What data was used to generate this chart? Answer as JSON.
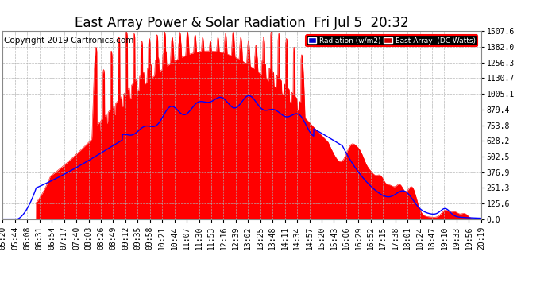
{
  "title": "East Array Power & Solar Radiation  Fri Jul 5  20:32",
  "copyright": "Copyright 2019 Cartronics.com",
  "legend_radiation": "Radiation (w/m2)",
  "legend_east": "East Array  (DC Watts)",
  "legend_radiation_color": "#0000cc",
  "legend_east_color": "#cc0000",
  "legend_bg": "#000000",
  "bg_color": "#ffffff",
  "plot_bg": "#ffffff",
  "grid_color": "#b0b0b0",
  "fill_color": "#ff0000",
  "line_color": "#0000ff",
  "yticks": [
    0.0,
    125.6,
    251.3,
    376.9,
    502.5,
    628.2,
    753.8,
    879.4,
    1005.1,
    1130.7,
    1256.3,
    1382.0,
    1507.6
  ],
  "ymax": 1507.6,
  "ymin": 0.0,
  "title_fontsize": 12,
  "tick_fontsize": 7,
  "copyright_fontsize": 7.5
}
